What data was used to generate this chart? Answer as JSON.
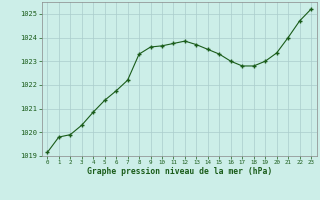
{
  "x": [
    0,
    1,
    2,
    3,
    4,
    5,
    6,
    7,
    8,
    9,
    10,
    11,
    12,
    13,
    14,
    15,
    16,
    17,
    18,
    19,
    20,
    21,
    22,
    23
  ],
  "y": [
    1019.15,
    1019.8,
    1019.9,
    1020.3,
    1020.85,
    1021.35,
    1021.75,
    1022.2,
    1023.3,
    1023.6,
    1023.65,
    1023.75,
    1023.85,
    1023.7,
    1023.5,
    1023.3,
    1023.0,
    1022.8,
    1022.8,
    1023.0,
    1023.35,
    1024.0,
    1024.7,
    1025.2
  ],
  "line_color": "#1a5c1a",
  "marker_color": "#1a5c1a",
  "bg_color": "#cceee8",
  "grid_color": "#aacccc",
  "xlabel": "Graphe pression niveau de la mer (hPa)",
  "xlabel_color": "#1a5c1a",
  "tick_color": "#1a5c1a",
  "ylim": [
    1019.0,
    1025.5
  ],
  "yticks": [
    1019,
    1020,
    1021,
    1022,
    1023,
    1024,
    1025
  ],
  "xticks": [
    0,
    1,
    2,
    3,
    4,
    5,
    6,
    7,
    8,
    9,
    10,
    11,
    12,
    13,
    14,
    15,
    16,
    17,
    18,
    19,
    20,
    21,
    22,
    23
  ],
  "xlim": [
    -0.5,
    23.5
  ]
}
